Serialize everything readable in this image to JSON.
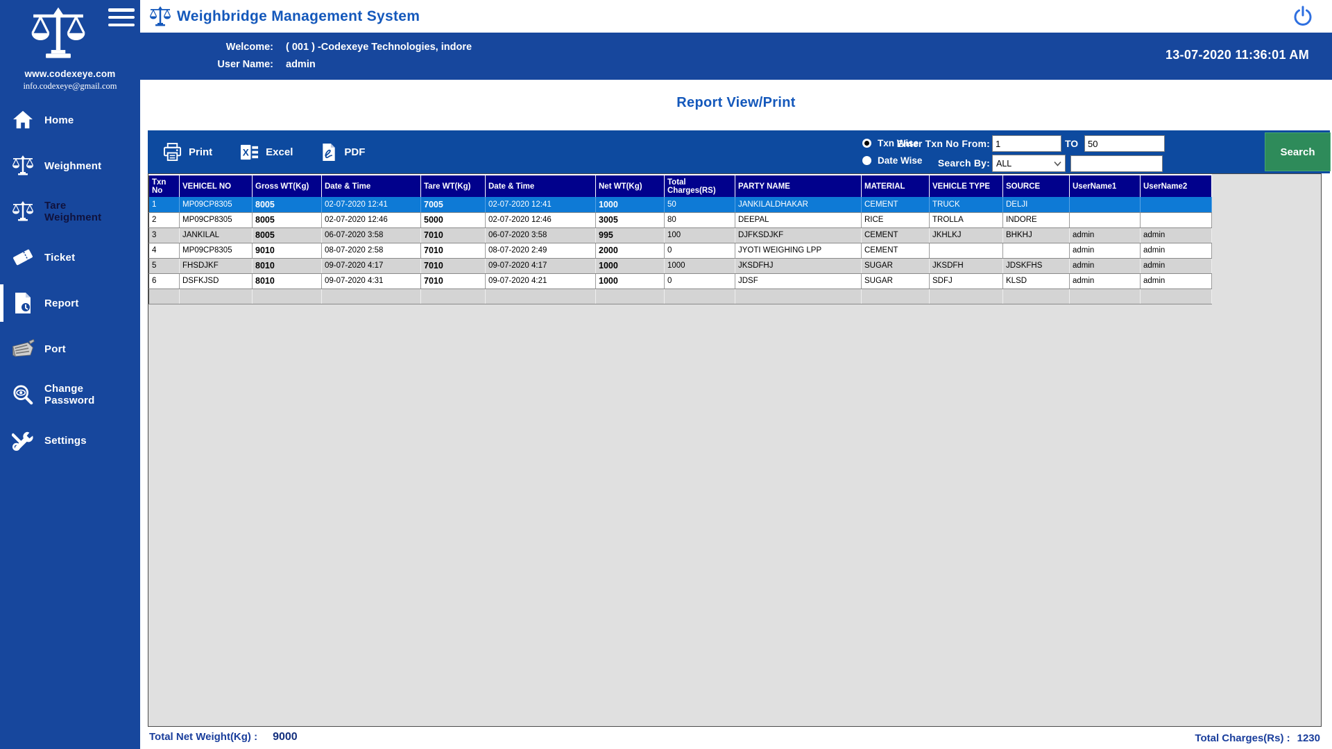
{
  "app": {
    "title": "Weighbridge Management System",
    "datetime": "13-07-2020 11:36:01 AM",
    "welcome_label": "Welcome:",
    "welcome_value": "( 001 ) -Codexeye Technologies, indore",
    "username_label": "User Name:",
    "username_value": "admin"
  },
  "sidebar": {
    "website": "www.codexeye.com",
    "email": "info.codexeye@gmail.com",
    "items": [
      {
        "label": "Home",
        "icon": "home-icon",
        "active": false
      },
      {
        "label": "Weighment",
        "icon": "scale-icon",
        "active": false
      },
      {
        "label": "Tare Weighment",
        "icon": "scale-icon",
        "active": false
      },
      {
        "label": "Ticket",
        "icon": "ticket-icon",
        "active": false
      },
      {
        "label": "Report",
        "icon": "report-file-icon",
        "active": true
      },
      {
        "label": "Port",
        "icon": "serial-port-icon",
        "active": false
      },
      {
        "label": "Change Password",
        "icon": "eye-magnifier-icon",
        "active": false
      },
      {
        "label": "Settings",
        "icon": "tools-icon",
        "active": false
      }
    ]
  },
  "report": {
    "page_title": "Report View/Print",
    "toolbar": {
      "print_label": "Print",
      "excel_label": "Excel",
      "pdf_label": "PDF",
      "radio_txn_wise": "Txn Wise",
      "radio_date_wise": "Date Wise",
      "txn_from_label": "Enter Txn No From:",
      "txn_from_value": "1",
      "to_label": "TO",
      "txn_to_value": "50",
      "search_by_label": "Search By:",
      "search_by_value": "ALL",
      "search_button_label": "Search"
    },
    "table": {
      "columns": [
        "Txn No",
        "VEHICEL NO",
        "Gross WT(Kg)",
        "Date & Time",
        "Tare WT(Kg)",
        "Date & Time",
        "Net WT(Kg)",
        "Total Charges(RS)",
        "PARTY NAME",
        "MATERIAL",
        "VEHICLE TYPE",
        "SOURCE",
        "UserName1",
        "UserName2"
      ],
      "selected_row_index": 0,
      "rows": [
        [
          "1",
          "MP09CP8305",
          "8005",
          "02-07-2020  12:41",
          "7005",
          "02-07-2020  12:41",
          "1000",
          "50",
          "JANKILALDHAKAR",
          "CEMENT",
          "TRUCK",
          "DELJI",
          "",
          ""
        ],
        [
          "2",
          "MP09CP8305",
          "8005",
          "02-07-2020  12:46",
          "5000",
          "02-07-2020  12:46",
          "3005",
          "80",
          "DEEPAL",
          "RICE",
          "TROLLA",
          "INDORE",
          "",
          ""
        ],
        [
          "3",
          "JANKILAL",
          "8005",
          "06-07-2020  3:58",
          "7010",
          "06-07-2020  3:58",
          "995",
          "100",
          "DJFKSDJKF",
          "CEMENT",
          "JKHLKJ",
          "BHKHJ",
          "admin",
          "admin"
        ],
        [
          "4",
          "MP09CP8305",
          "9010",
          "08-07-2020  2:58",
          "7010",
          "08-07-2020  2:49",
          "2000",
          "0",
          "JYOTI WEIGHING LPP",
          "CEMENT",
          "",
          "",
          "admin",
          "admin"
        ],
        [
          "5",
          "FHSDJKF",
          "8010",
          "09-07-2020  4:17",
          "7010",
          "09-07-2020  4:17",
          "1000",
          "1000",
          "JKSDFHJ",
          "SUGAR",
          "JKSDFH",
          "JDSKFHS",
          "admin",
          "admin"
        ],
        [
          "6",
          "DSFKJSD",
          "8010",
          "09-07-2020  4:31",
          "7010",
          "09-07-2020  4:21",
          "1000",
          "0",
          "JDSF",
          "SUGAR",
          "SDFJ",
          "KLSD",
          "admin",
          "admin"
        ]
      ]
    },
    "totals": {
      "net_weight_label": "Total Net Weight(Kg) :",
      "net_weight_value": "9000",
      "charges_label": "Total Charges(Rs) :",
      "charges_value": "1230"
    }
  },
  "colors": {
    "brand_blue": "#17479d",
    "toolbar_blue": "#0d4a9f",
    "table_header_navy": "#01018c",
    "selected_row_blue": "#0e7ad6",
    "search_green": "#2e8b5a",
    "title_blue": "#1458bb"
  }
}
